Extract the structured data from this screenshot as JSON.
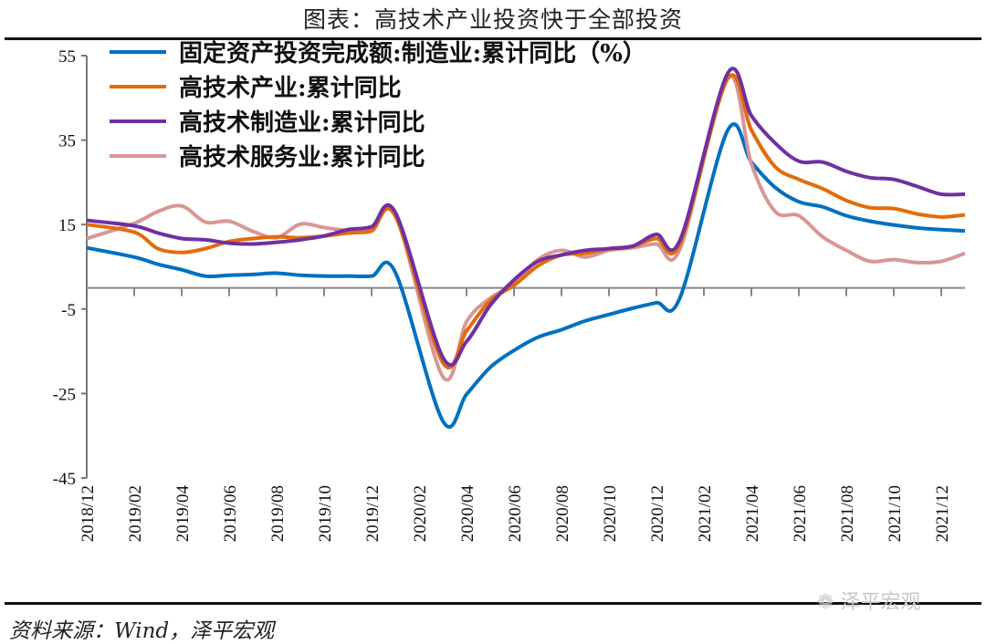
{
  "title": "图表：高技术产业投资快于全部投资",
  "source": "资料来源：Wind，泽平宏观",
  "watermark": "泽平宏观",
  "watermark_icon": "wechat-icon",
  "chart_data": {
    "type": "line",
    "title": "",
    "xlabel": "",
    "ylabel": "",
    "ylim": [
      -45,
      55
    ],
    "yticks": [
      "55",
      "35",
      "15",
      "-5",
      "-25",
      "-45"
    ],
    "xticks": [
      "2018/12",
      "2019/02",
      "2019/04",
      "2019/06",
      "2019/08",
      "2019/10",
      "2019/12",
      "2020/02",
      "2020/04",
      "2020/06",
      "2020/08",
      "2020/10",
      "2020/12",
      "2021/02",
      "2021/04",
      "2021/06",
      "2021/08",
      "2021/10",
      "2021/12"
    ],
    "grid": false,
    "legend_position": "top-left",
    "x": [
      "2018/12",
      "2019/01",
      "2019/02",
      "2019/03",
      "2019/04",
      "2019/05",
      "2019/06",
      "2019/07",
      "2019/08",
      "2019/09",
      "2019/10",
      "2019/11",
      "2019/12",
      "2020/01",
      "2020/02",
      "2020/03",
      "2020/04",
      "2020/05",
      "2020/06",
      "2020/07",
      "2020/08",
      "2020/09",
      "2020/10",
      "2020/11",
      "2020/12",
      "2021/01",
      "2021/02",
      "2021/03",
      "2021/04",
      "2021/05",
      "2021/06",
      "2021/07",
      "2021/08",
      "2021/09",
      "2021/10",
      "2021/11",
      "2021/12",
      "2022/01"
    ],
    "series": [
      {
        "name": "固定资产投资完成额:制造业:累计同比（%）",
        "color": "#0070c0",
        "values": [
          9.5,
          null,
          7.3,
          5.6,
          4.3,
          2.8,
          3.0,
          3.2,
          3.5,
          3.0,
          2.8,
          2.8,
          2.8,
          3.7,
          null,
          -31.5,
          -25.2,
          -18.8,
          -14.8,
          -11.7,
          -9.9,
          -7.8,
          -6.3,
          -4.8,
          -3.5,
          -2.2,
          null,
          37.3,
          29.8,
          23.8,
          20.4,
          19.2,
          17.1,
          15.8,
          14.9,
          14.2,
          13.8,
          13.5
        ]
      },
      {
        "name": "高技术产业:累计同比",
        "color": "#e36c0a",
        "values": [
          15.0,
          null,
          13.2,
          9.3,
          8.4,
          9.3,
          11.0,
          11.7,
          12.1,
          11.9,
          12.3,
          13.0,
          13.6,
          17.0,
          null,
          -17.7,
          -10.2,
          -3.0,
          0.6,
          5.2,
          7.8,
          8.2,
          9.3,
          9.9,
          11.7,
          10.6,
          null,
          49.5,
          37.4,
          28.7,
          25.7,
          23.5,
          20.7,
          19.0,
          18.8,
          17.5,
          16.8,
          17.3
        ]
      },
      {
        "name": "高技术制造业:累计同比",
        "color": "#7030a0",
        "values": [
          16.0,
          null,
          14.7,
          13.0,
          11.7,
          11.4,
          10.6,
          10.4,
          10.8,
          11.4,
          12.3,
          13.8,
          14.5,
          17.9,
          null,
          -16.4,
          -12.7,
          -4.1,
          1.9,
          6.3,
          7.8,
          8.9,
          9.3,
          9.9,
          12.7,
          11.4,
          null,
          50.8,
          40.8,
          34.3,
          30.0,
          29.8,
          27.6,
          26.1,
          25.7,
          24.0,
          22.2,
          22.2
        ]
      },
      {
        "name": "高技术服务业:累计同比",
        "color": "#d99694",
        "values": [
          11.7,
          null,
          15.3,
          18.1,
          19.4,
          15.6,
          15.8,
          13.4,
          11.9,
          15.1,
          14.3,
          13.6,
          13.4,
          17.5,
          null,
          -21.0,
          -8.0,
          -2.4,
          0.9,
          6.7,
          8.9,
          7.3,
          8.9,
          9.5,
          10.4,
          9.3,
          null,
          49.9,
          29.4,
          18.1,
          17.1,
          12.1,
          8.9,
          6.3,
          6.7,
          6.0,
          6.3,
          8.2
        ]
      }
    ]
  }
}
